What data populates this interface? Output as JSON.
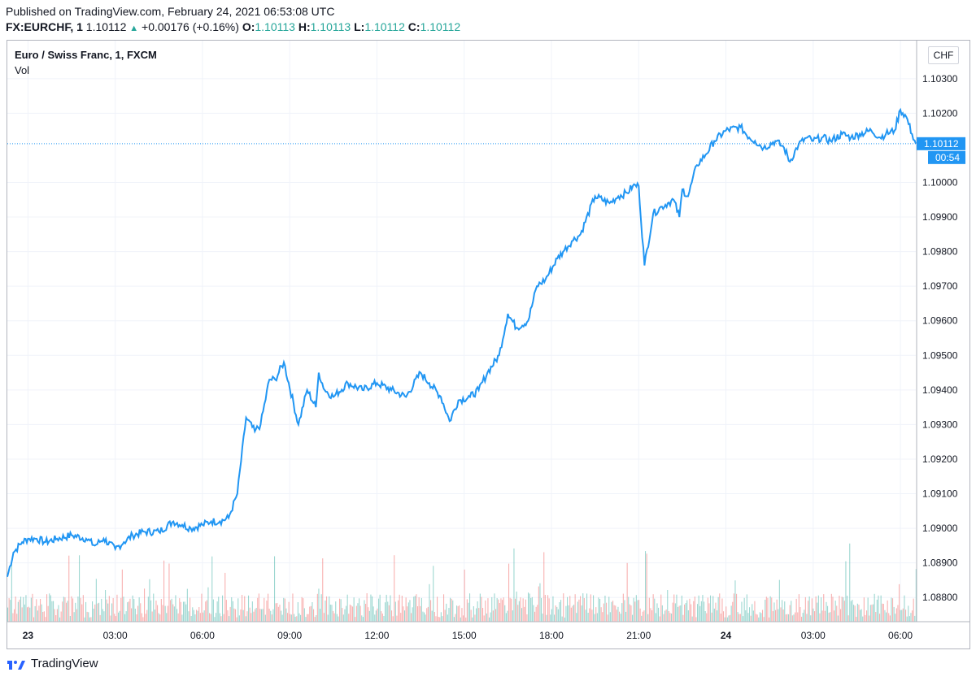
{
  "header": {
    "published": "Published on TradingView.com, February 24, 2021 06:53:08 UTC",
    "symbol": "FX:EURCHF, 1",
    "last": "1.10112",
    "change": "+0.00176 (+0.16%)",
    "o_label": "O:",
    "o_value": "1.10113",
    "h_label": "H:",
    "h_value": "1.10113",
    "l_label": "L:",
    "l_value": "1.10112",
    "c_label": "C:",
    "c_value": "1.10112"
  },
  "chart_title": "Euro / Swiss Franc, 1, FXCM",
  "vol_label": "Vol",
  "currency_label": "CHF",
  "footer": {
    "brand": "TradingView"
  },
  "colors": {
    "line": "#2196f3",
    "vol_up": "#26a69a",
    "vol_down": "#ef5350",
    "grid": "#f0f3fa",
    "price_tag": "#2196f3"
  },
  "chart_data": {
    "type": "line",
    "title": "Euro / Swiss Franc, 1, FXCM",
    "ylim": [
      1.0873,
      1.1041
    ],
    "y_ticks": [
      "1.10300",
      "1.10200",
      "1.10000",
      "1.09900",
      "1.09800",
      "1.09700",
      "1.09600",
      "1.09500",
      "1.09400",
      "1.09300",
      "1.09200",
      "1.09100",
      "1.09000",
      "1.08900",
      "1.08800"
    ],
    "x_ticks": [
      {
        "label": "23",
        "t": 1,
        "bold": true
      },
      {
        "label": "03:00",
        "t": 4
      },
      {
        "label": "06:00",
        "t": 7
      },
      {
        "label": "09:00",
        "t": 10
      },
      {
        "label": "12:00",
        "t": 13
      },
      {
        "label": "15:00",
        "t": 16
      },
      {
        "label": "18:00",
        "t": 19
      },
      {
        "label": "21:00",
        "t": 22
      },
      {
        "label": "24",
        "t": 25,
        "bold": true
      },
      {
        "label": "03:00",
        "t": 28
      },
      {
        "label": "06:00",
        "t": 31
      }
    ],
    "xlim": [
      0.29,
      31.53
    ],
    "last_price_label": "1.10112",
    "countdown_label": "00:54",
    "last_price": 1.10112,
    "series": [
      {
        "x": [
          0.29,
          0.5,
          0.8,
          1.0,
          1.3,
          1.6,
          2.0,
          2.5,
          3.0,
          3.3,
          3.6,
          4.0,
          4.3,
          4.6,
          5.0,
          5.5,
          6.0,
          6.3,
          6.6,
          7.0,
          7.3,
          7.6,
          7.9,
          8.2,
          8.5,
          8.8,
          9.0,
          9.3,
          9.5,
          9.8,
          10.3,
          10.6,
          10.9,
          11.0,
          11.2,
          11.5,
          12.0,
          12.5,
          13.0,
          13.5,
          14.0,
          14.5,
          14.8,
          15.2,
          15.5,
          15.8,
          16.2,
          16.5,
          16.8,
          17.2,
          17.5,
          17.8,
          18.2,
          18.5,
          18.8,
          19.2,
          19.4,
          19.7,
          20.0,
          20.5,
          21.0,
          21.3,
          21.6,
          21.8,
          22.0,
          22.2,
          22.5,
          22.8,
          23.0,
          23.2,
          23.4,
          23.5,
          23.7,
          24.0,
          24.3,
          24.6,
          25.0,
          25.5,
          25.8,
          26.0,
          26.3,
          26.7,
          27.0,
          27.2,
          27.5,
          27.8,
          28.0,
          28.3,
          28.6,
          29.0,
          29.3,
          29.6,
          30.0,
          30.3,
          30.5,
          30.8,
          31.0,
          31.2,
          31.4,
          31.53
        ],
        "y": [
          1.0886,
          1.0893,
          1.0896,
          1.0897,
          1.0897,
          1.0896,
          1.0897,
          1.0898,
          1.0897,
          1.0895,
          1.0897,
          1.0894,
          1.0896,
          1.0898,
          1.0899,
          1.0899,
          1.0902,
          1.0901,
          1.09,
          1.0901,
          1.0902,
          1.0902,
          1.0903,
          1.091,
          1.0932,
          1.0928,
          1.093,
          1.0943,
          1.0943,
          1.0948,
          1.093,
          1.094,
          1.0935,
          1.0945,
          1.094,
          1.0938,
          1.0942,
          1.094,
          1.0942,
          1.094,
          1.0938,
          1.0945,
          1.0942,
          1.0938,
          1.0931,
          1.0937,
          1.0938,
          1.094,
          1.0945,
          1.095,
          1.0962,
          1.0958,
          1.096,
          1.097,
          1.0972,
          1.0978,
          1.098,
          1.0983,
          1.0985,
          1.0996,
          1.0994,
          1.0996,
          1.0997,
          1.0999,
          1.0999,
          1.0976,
          1.0991,
          1.0993,
          1.0994,
          1.0995,
          1.099,
          1.0998,
          1.0996,
          1.1005,
          1.1008,
          1.1012,
          1.1015,
          1.1016,
          1.1013,
          1.1012,
          1.101,
          1.1012,
          1.101,
          1.1006,
          1.1011,
          1.1013,
          1.1012,
          1.1013,
          1.1012,
          1.1014,
          1.1013,
          1.1014,
          1.1015,
          1.1013,
          1.1014,
          1.1015,
          1.1021,
          1.1019,
          1.1014,
          1.10112
        ]
      }
    ]
  }
}
